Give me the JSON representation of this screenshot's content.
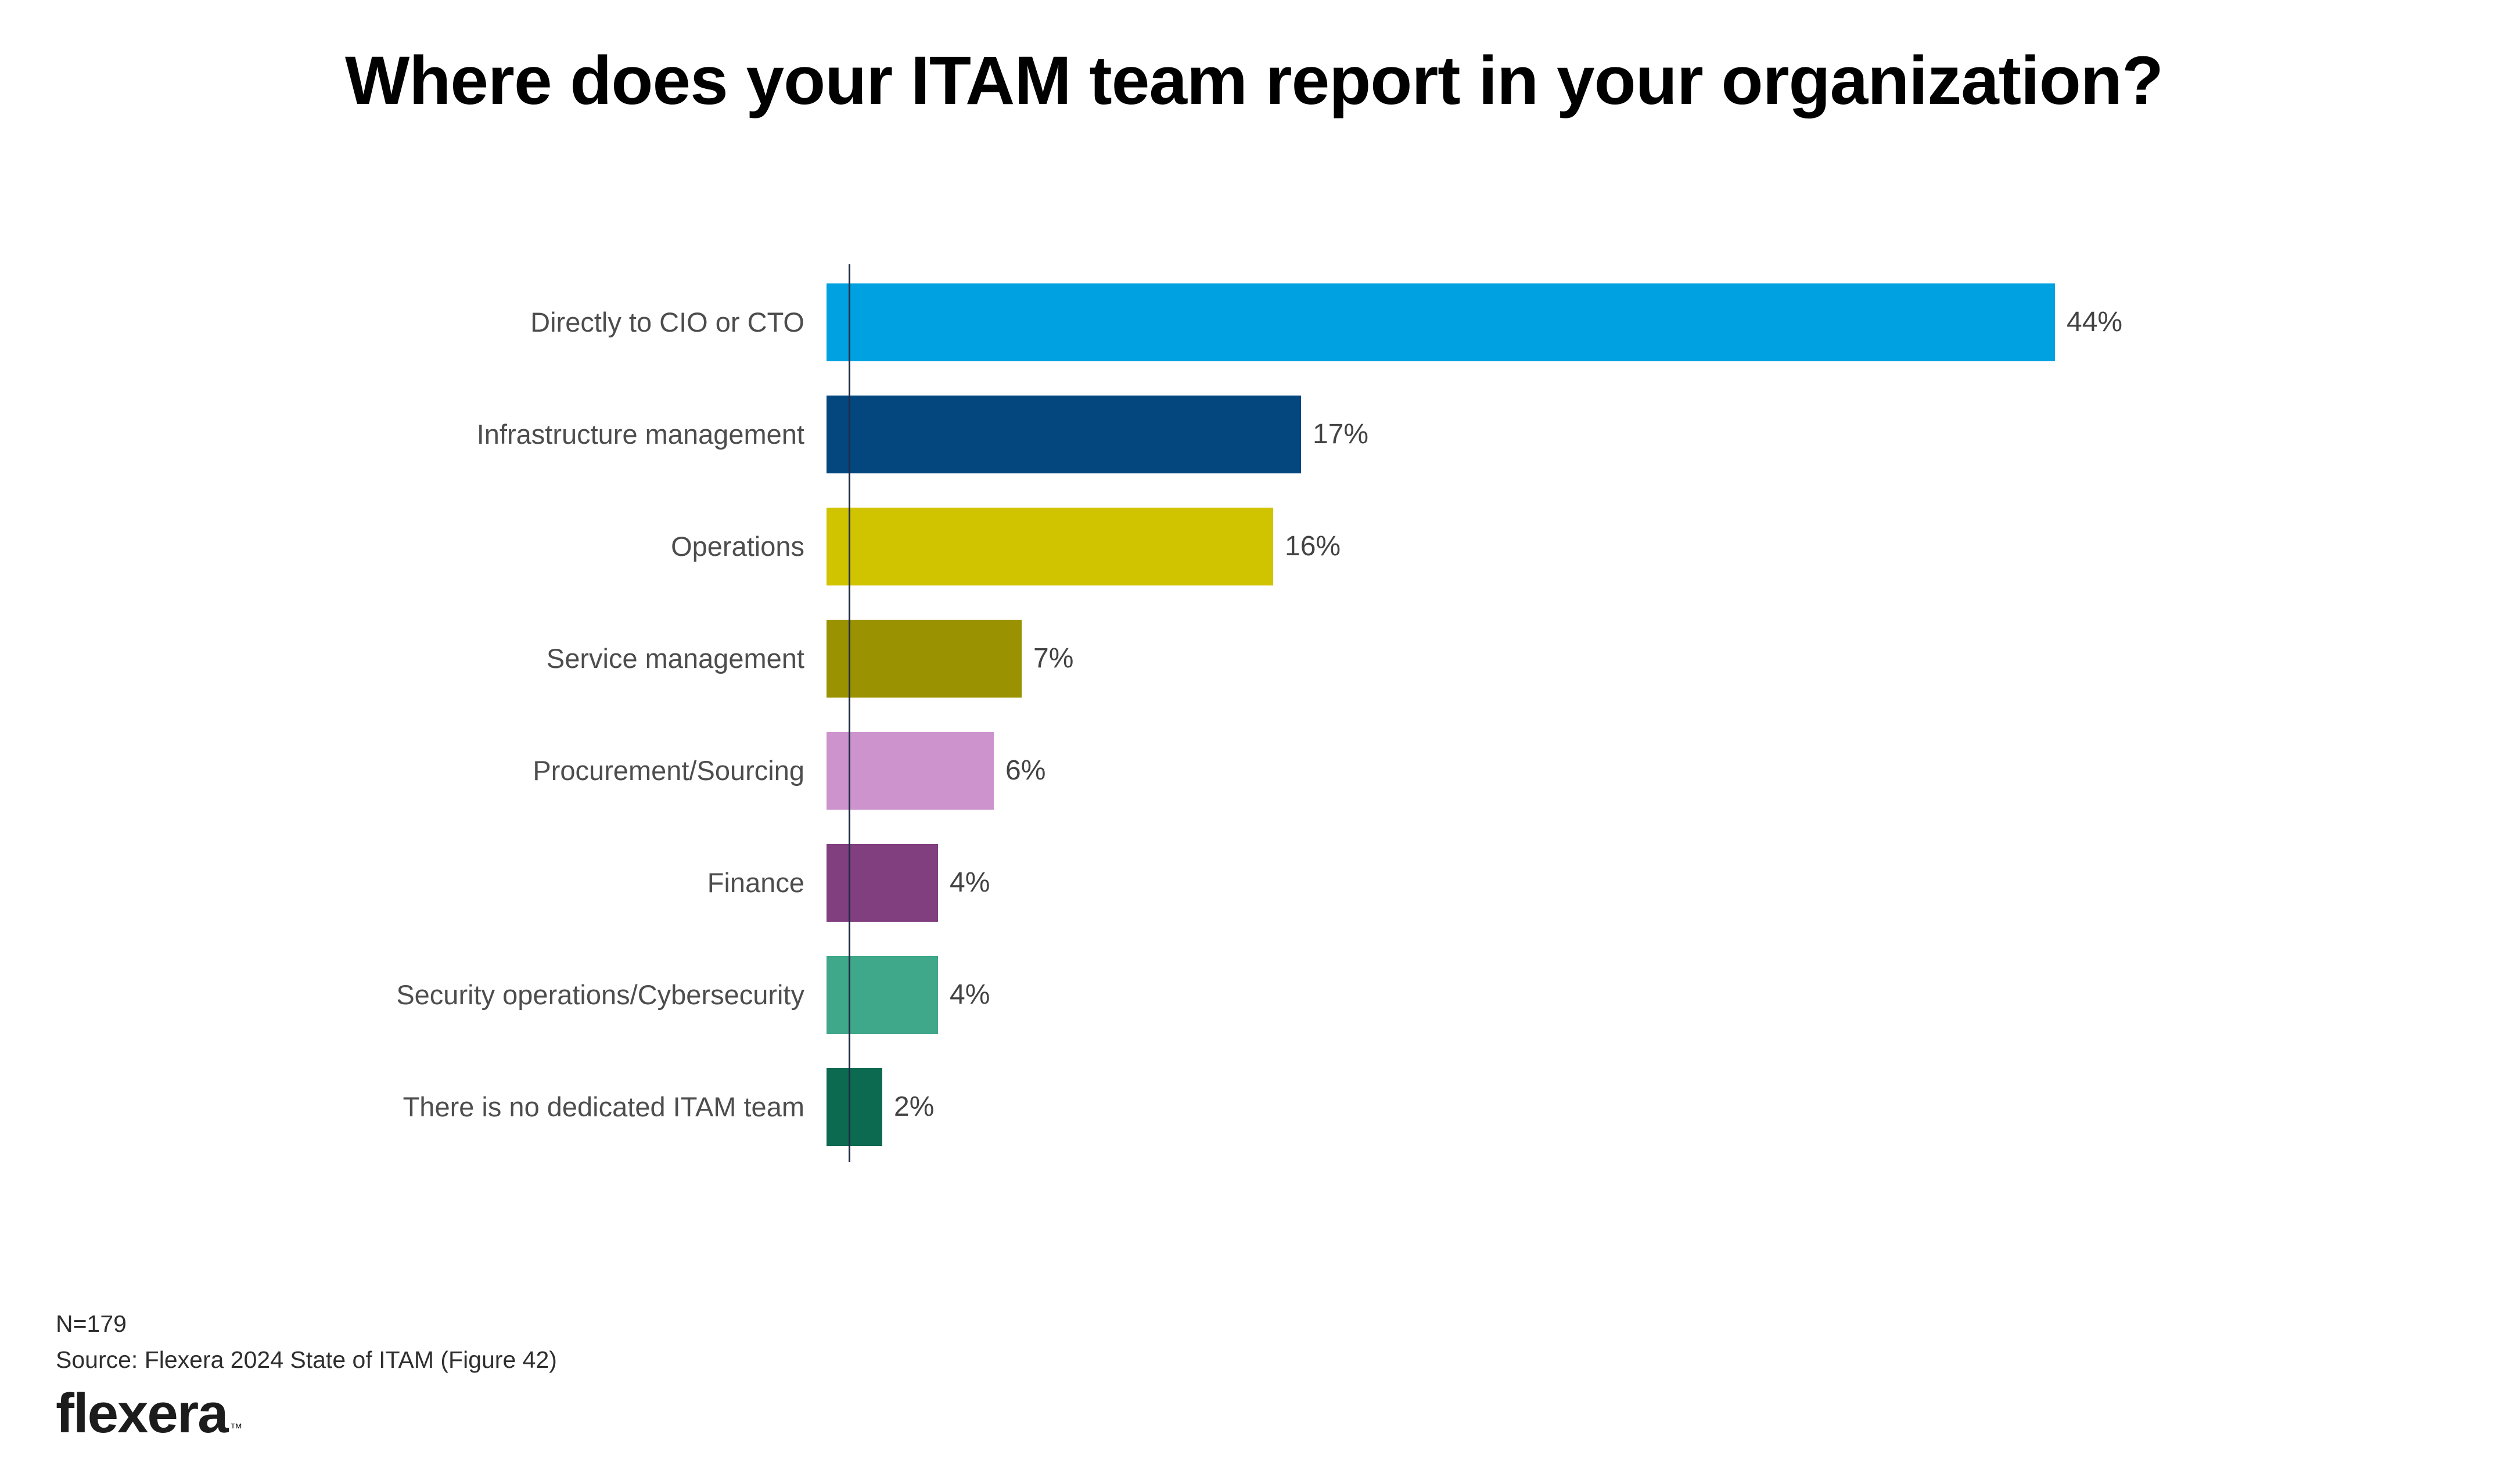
{
  "title": "Where does your ITAM team report in your organization?",
  "chart_data": {
    "type": "bar",
    "orientation": "horizontal",
    "title": "Where does your ITAM team report in your organization?",
    "categories": [
      "Directly to CIO or CTO",
      "Infrastructure management",
      "Operations",
      "Service management",
      "Procurement/Sourcing",
      "Finance",
      "Security operations/Cybersecurity",
      "There is no dedicated ITAM team"
    ],
    "values": [
      44,
      17,
      16,
      7,
      6,
      4,
      4,
      2
    ],
    "value_labels": [
      "44%",
      "17%",
      "16%",
      "7%",
      "6%",
      "4%",
      "4%",
      "2%"
    ],
    "bar_colors": [
      "#00A1E0",
      "#04477F",
      "#D0C400",
      "#9A9200",
      "#CC93CC",
      "#813F80",
      "#3FA78A",
      "#0C6A51"
    ],
    "axis_color": "#1F2B45",
    "xlabel": "",
    "ylabel": "",
    "xlim": [
      0,
      45
    ],
    "grid": false,
    "legend": "none",
    "value_label_position": "outside-end"
  },
  "footer": {
    "sample_size": "N=179",
    "source": "Source: Flexera 2024 State of ITAM (Figure 42)",
    "logo_text": "flexera",
    "logo_tm": "™"
  }
}
